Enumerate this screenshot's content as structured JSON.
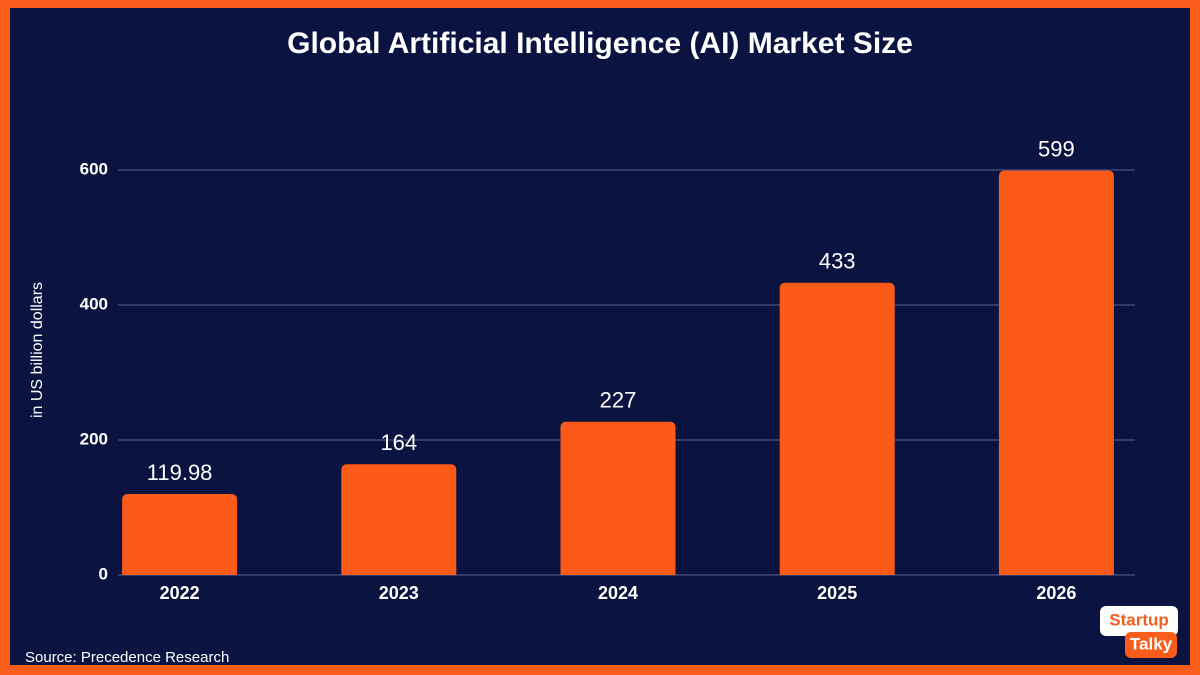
{
  "chart_data": {
    "type": "bar",
    "title": "Global Artificial Intelligence (AI) Market Size",
    "y_label": "in US billion dollars",
    "categories": [
      "2022",
      "2023",
      "2024",
      "2025",
      "2026"
    ],
    "values": [
      119.98,
      164,
      227,
      433,
      599
    ],
    "color": "#fb5a19",
    "ylim": [
      0,
      600
    ],
    "yticks": [
      0,
      200,
      400,
      600
    ],
    "grid": true,
    "source": "Source: Precedence Research"
  },
  "logo": {
    "line1": "Startup",
    "line2": "Talky"
  }
}
